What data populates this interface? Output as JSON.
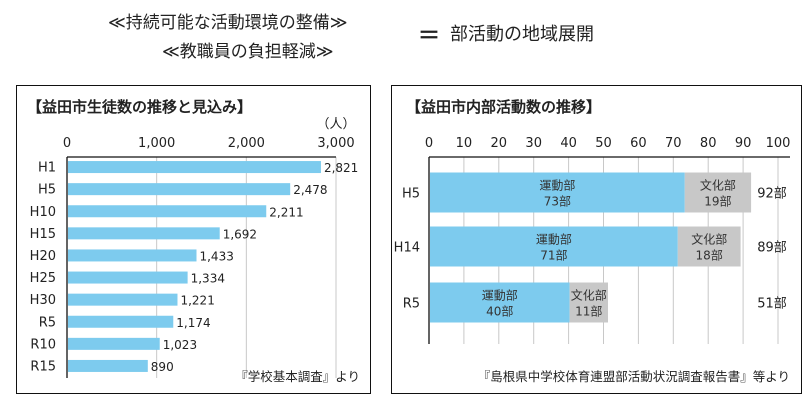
{
  "header": {
    "line1": "≪持続可能な活動環境の整備≫",
    "line2": "≪教職員の負担軽減≫",
    "equals": "＝",
    "result": "部活動の地域展開"
  },
  "colors": {
    "bar_blue": "#7dcbee",
    "bar_gray": "#c8c8c8",
    "grid": "#c8c8c8",
    "axis": "#111111"
  },
  "chart_data": [
    {
      "type": "bar",
      "orientation": "horizontal",
      "title": "【益田市生徒数の推移と見込み】",
      "unit_label": "（人）",
      "categories": [
        "H1",
        "H5",
        "H10",
        "H15",
        "H20",
        "H25",
        "H30",
        "R5",
        "R10",
        "R15"
      ],
      "values": [
        2821,
        2478,
        2211,
        1692,
        1433,
        1334,
        1221,
        1174,
        1023,
        890
      ],
      "value_labels": [
        "2,821",
        "2,478",
        "2,211",
        "1,692",
        "1,433",
        "1,334",
        "1,221",
        "1,174",
        "1,023",
        "890"
      ],
      "xlim": [
        0,
        3000
      ],
      "xticks": [
        0,
        1000,
        2000,
        3000
      ],
      "xtick_labels": [
        "0",
        "1,000",
        "2,000",
        "3,000"
      ],
      "grid": true,
      "source": "『学校基本調査』より"
    },
    {
      "type": "bar",
      "orientation": "horizontal",
      "stacked": true,
      "title": "【益田市内部活動数の推移】",
      "categories": [
        "H5",
        "H14",
        "R5"
      ],
      "series": [
        {
          "name": "運動部",
          "values": [
            73,
            71,
            40
          ],
          "labels": [
            "73部",
            "71部",
            "40部"
          ]
        },
        {
          "name": "文化部",
          "values": [
            19,
            18,
            11
          ],
          "labels": [
            "19部",
            "18部",
            "11部"
          ]
        }
      ],
      "totals": [
        92,
        89,
        51
      ],
      "total_labels": [
        "92部",
        "89部",
        "51部"
      ],
      "xlim": [
        0,
        100
      ],
      "xticks": [
        0,
        10,
        20,
        30,
        40,
        50,
        60,
        70,
        80,
        90,
        100
      ],
      "xtick_labels": [
        "0",
        "10",
        "20",
        "30",
        "40",
        "50",
        "60",
        "70",
        "80",
        "90",
        "100"
      ],
      "grid": true,
      "source": "『島根県中学校体育連盟部活動状況調査報告書』等より"
    }
  ]
}
